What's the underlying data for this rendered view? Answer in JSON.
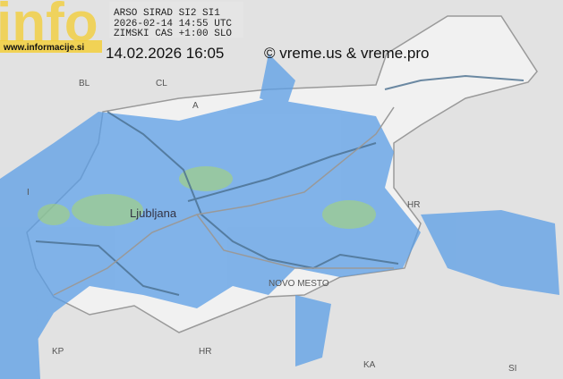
{
  "header": {
    "logo": "info",
    "logo_url": "www.informacije.si",
    "source": "ARSO SIRAD SI2 SI1",
    "utc_time": "2026-02-14 14:55 UTC",
    "timezone": "ZIMSKI CAS +1:00 SLO",
    "local_time": "14.02.2026 16:05",
    "copyright": "© vreme.us & vreme.pro"
  },
  "map": {
    "labels": [
      "BL",
      "CL",
      "A",
      "I",
      "HR",
      "Ljubljana",
      "NOVO MESTO",
      "KP",
      "HR",
      "KA",
      "SI"
    ]
  }
}
